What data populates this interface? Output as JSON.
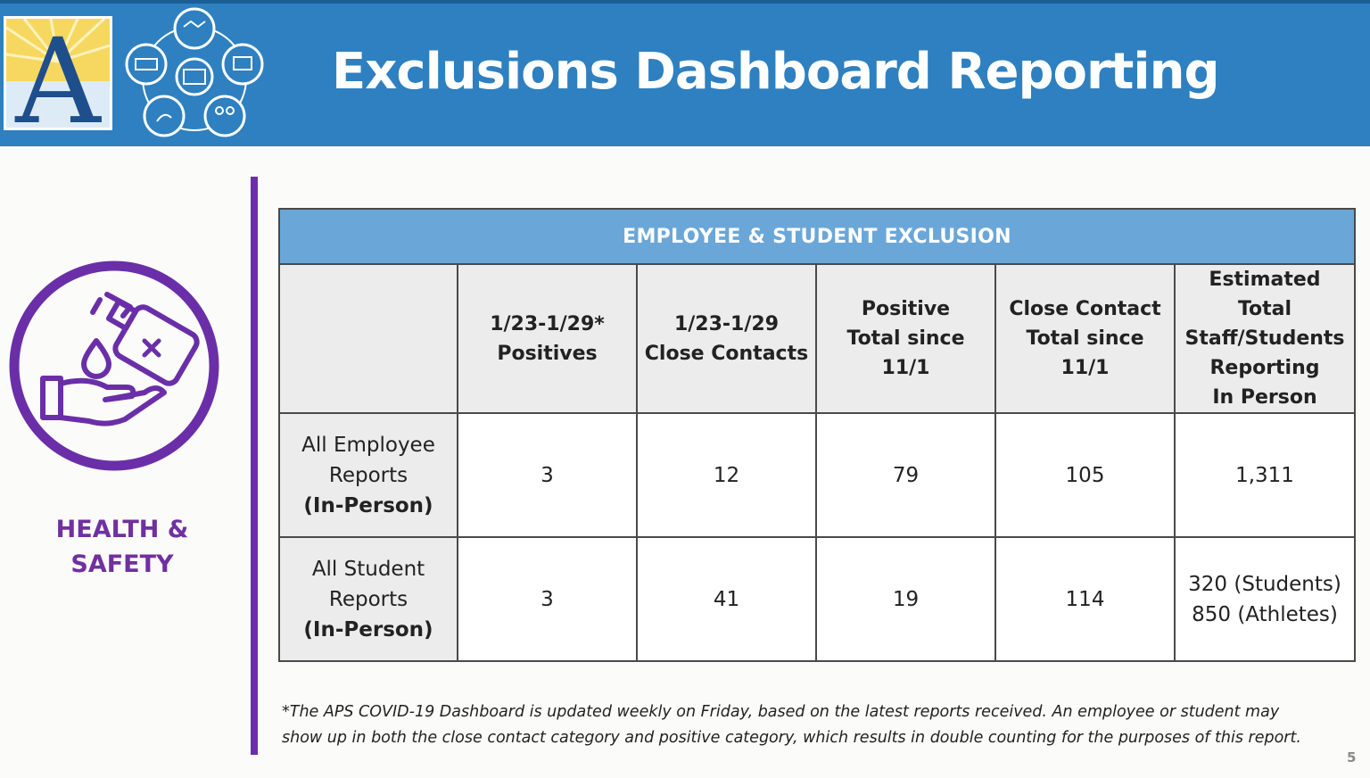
{
  "header": {
    "title": "Exclusions Dashboard Reporting",
    "logo_letter": "A"
  },
  "sidebar": {
    "label_line1": "HEALTH &",
    "label_line2": "SAFETY"
  },
  "table": {
    "banner": "EMPLOYEE & STUDENT EXCLUSION",
    "columns": [
      "",
      [
        "1/23-1/29*",
        "Positives"
      ],
      [
        "1/23-1/29",
        "Close Contacts"
      ],
      [
        "Positive",
        "Total since",
        "11/1"
      ],
      [
        "Close Contact",
        "Total since",
        "11/1"
      ],
      [
        "Estimated Total",
        "Staff/Students",
        "Reporting",
        "In Person"
      ]
    ],
    "rows": [
      {
        "label": [
          "All Employee",
          "Reports",
          "(In-Person)"
        ],
        "values": [
          "3",
          "12",
          "79",
          "105",
          "1,311"
        ]
      },
      {
        "label": [
          "All Student",
          "Reports",
          "(In-Person)"
        ],
        "values": [
          "3",
          "41",
          "19",
          "114",
          [
            "320 (Students)",
            "850 (Athletes)"
          ]
        ]
      }
    ]
  },
  "footnote": {
    "line1": "*The APS COVID-19 Dashboard is updated weekly on Friday, based on the latest reports received. An employee or student may",
    "line2": "show up in both the close contact category and positive category, which results in double counting for the purposes of this report."
  },
  "page_number": "5",
  "colors": {
    "header_blue": "#2e80c0",
    "banner_blue": "#6aa7d8",
    "purple": "#7030a0",
    "logo_gold": "#f4d35a",
    "logo_navy": "#1f4e8c"
  },
  "icons": [
    "logo-a-icon",
    "services-circle-icon",
    "hand-sanitizer-icon"
  ]
}
